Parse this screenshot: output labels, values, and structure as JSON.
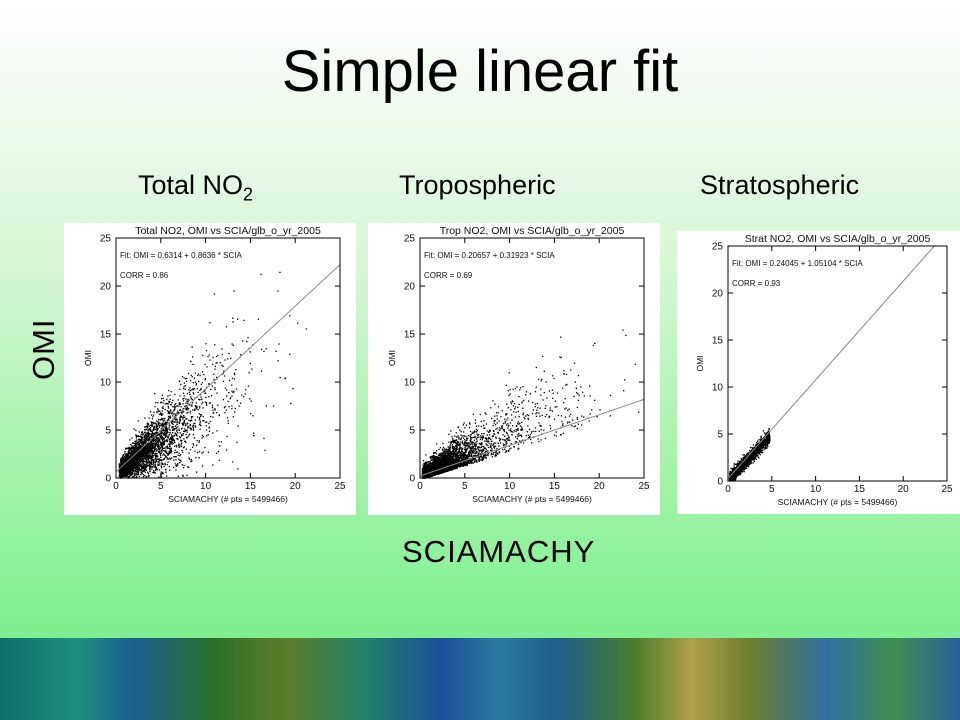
{
  "slide_title": "Simple linear fit",
  "column_headers": {
    "total": {
      "text": "Total NO",
      "subscript": "2"
    },
    "tropospheric": "Tropospheric",
    "stratospheric": "Stratospheric"
  },
  "y_axis_label": "OMI",
  "x_axis_label": "SCIAMACHY",
  "chart_data": [
    {
      "type": "scatter",
      "title": "Total NO2, OMI vs SCIA/glb_o_yr_2005",
      "fit_text": "Fit: OMI =  0.6314 +  0.8636 * SCIA",
      "corr_text": "CORR =  0.86",
      "xlabel": "SCIAMACHY (# pts =  5499466)",
      "ylabel": "OMI",
      "xlim": [
        0,
        25
      ],
      "ylim": [
        0,
        25
      ],
      "xticks": [
        0,
        5,
        10,
        15,
        20,
        25
      ],
      "yticks": [
        0,
        5,
        10,
        15,
        20,
        25
      ],
      "fit": {
        "intercept": 0.6314,
        "slope": 0.8636
      },
      "corr": 0.86,
      "n_points": 5499466
    },
    {
      "type": "scatter",
      "title": "Trop NO2, OMI vs SCIA/glb_o_yr_2005",
      "fit_text": "Fit: OMI =  0.20657 +  0.31923 * SCIA",
      "corr_text": "CORR =  0.69",
      "xlabel": "SCIAMACHY (# pts =  5499466)",
      "ylabel": "OMI",
      "xlim": [
        0,
        25
      ],
      "ylim": [
        0,
        25
      ],
      "xticks": [
        0,
        5,
        10,
        15,
        20,
        25
      ],
      "yticks": [
        0,
        5,
        10,
        15,
        20,
        25
      ],
      "fit": {
        "intercept": 0.20657,
        "slope": 0.31923
      },
      "corr": 0.69,
      "n_points": 5499466
    },
    {
      "type": "scatter",
      "title": "Strat NO2, OMI vs SCIA/glb_o_yr_2005",
      "fit_text": "Fit: OMI =  0.24045 +  1.05104 * SCIA",
      "corr_text": "CORR =  0.93",
      "xlabel": "SCIAMACHY (# pts =  5499466)",
      "ylabel": "OMI",
      "xlim": [
        0,
        25
      ],
      "ylim": [
        0,
        25
      ],
      "xticks": [
        0,
        5,
        10,
        15,
        20,
        25
      ],
      "yticks": [
        0,
        5,
        10,
        15,
        20,
        25
      ],
      "fit": {
        "intercept": 0.24045,
        "slope": 1.05104
      },
      "corr": 0.93,
      "n_points": 5499466
    }
  ]
}
